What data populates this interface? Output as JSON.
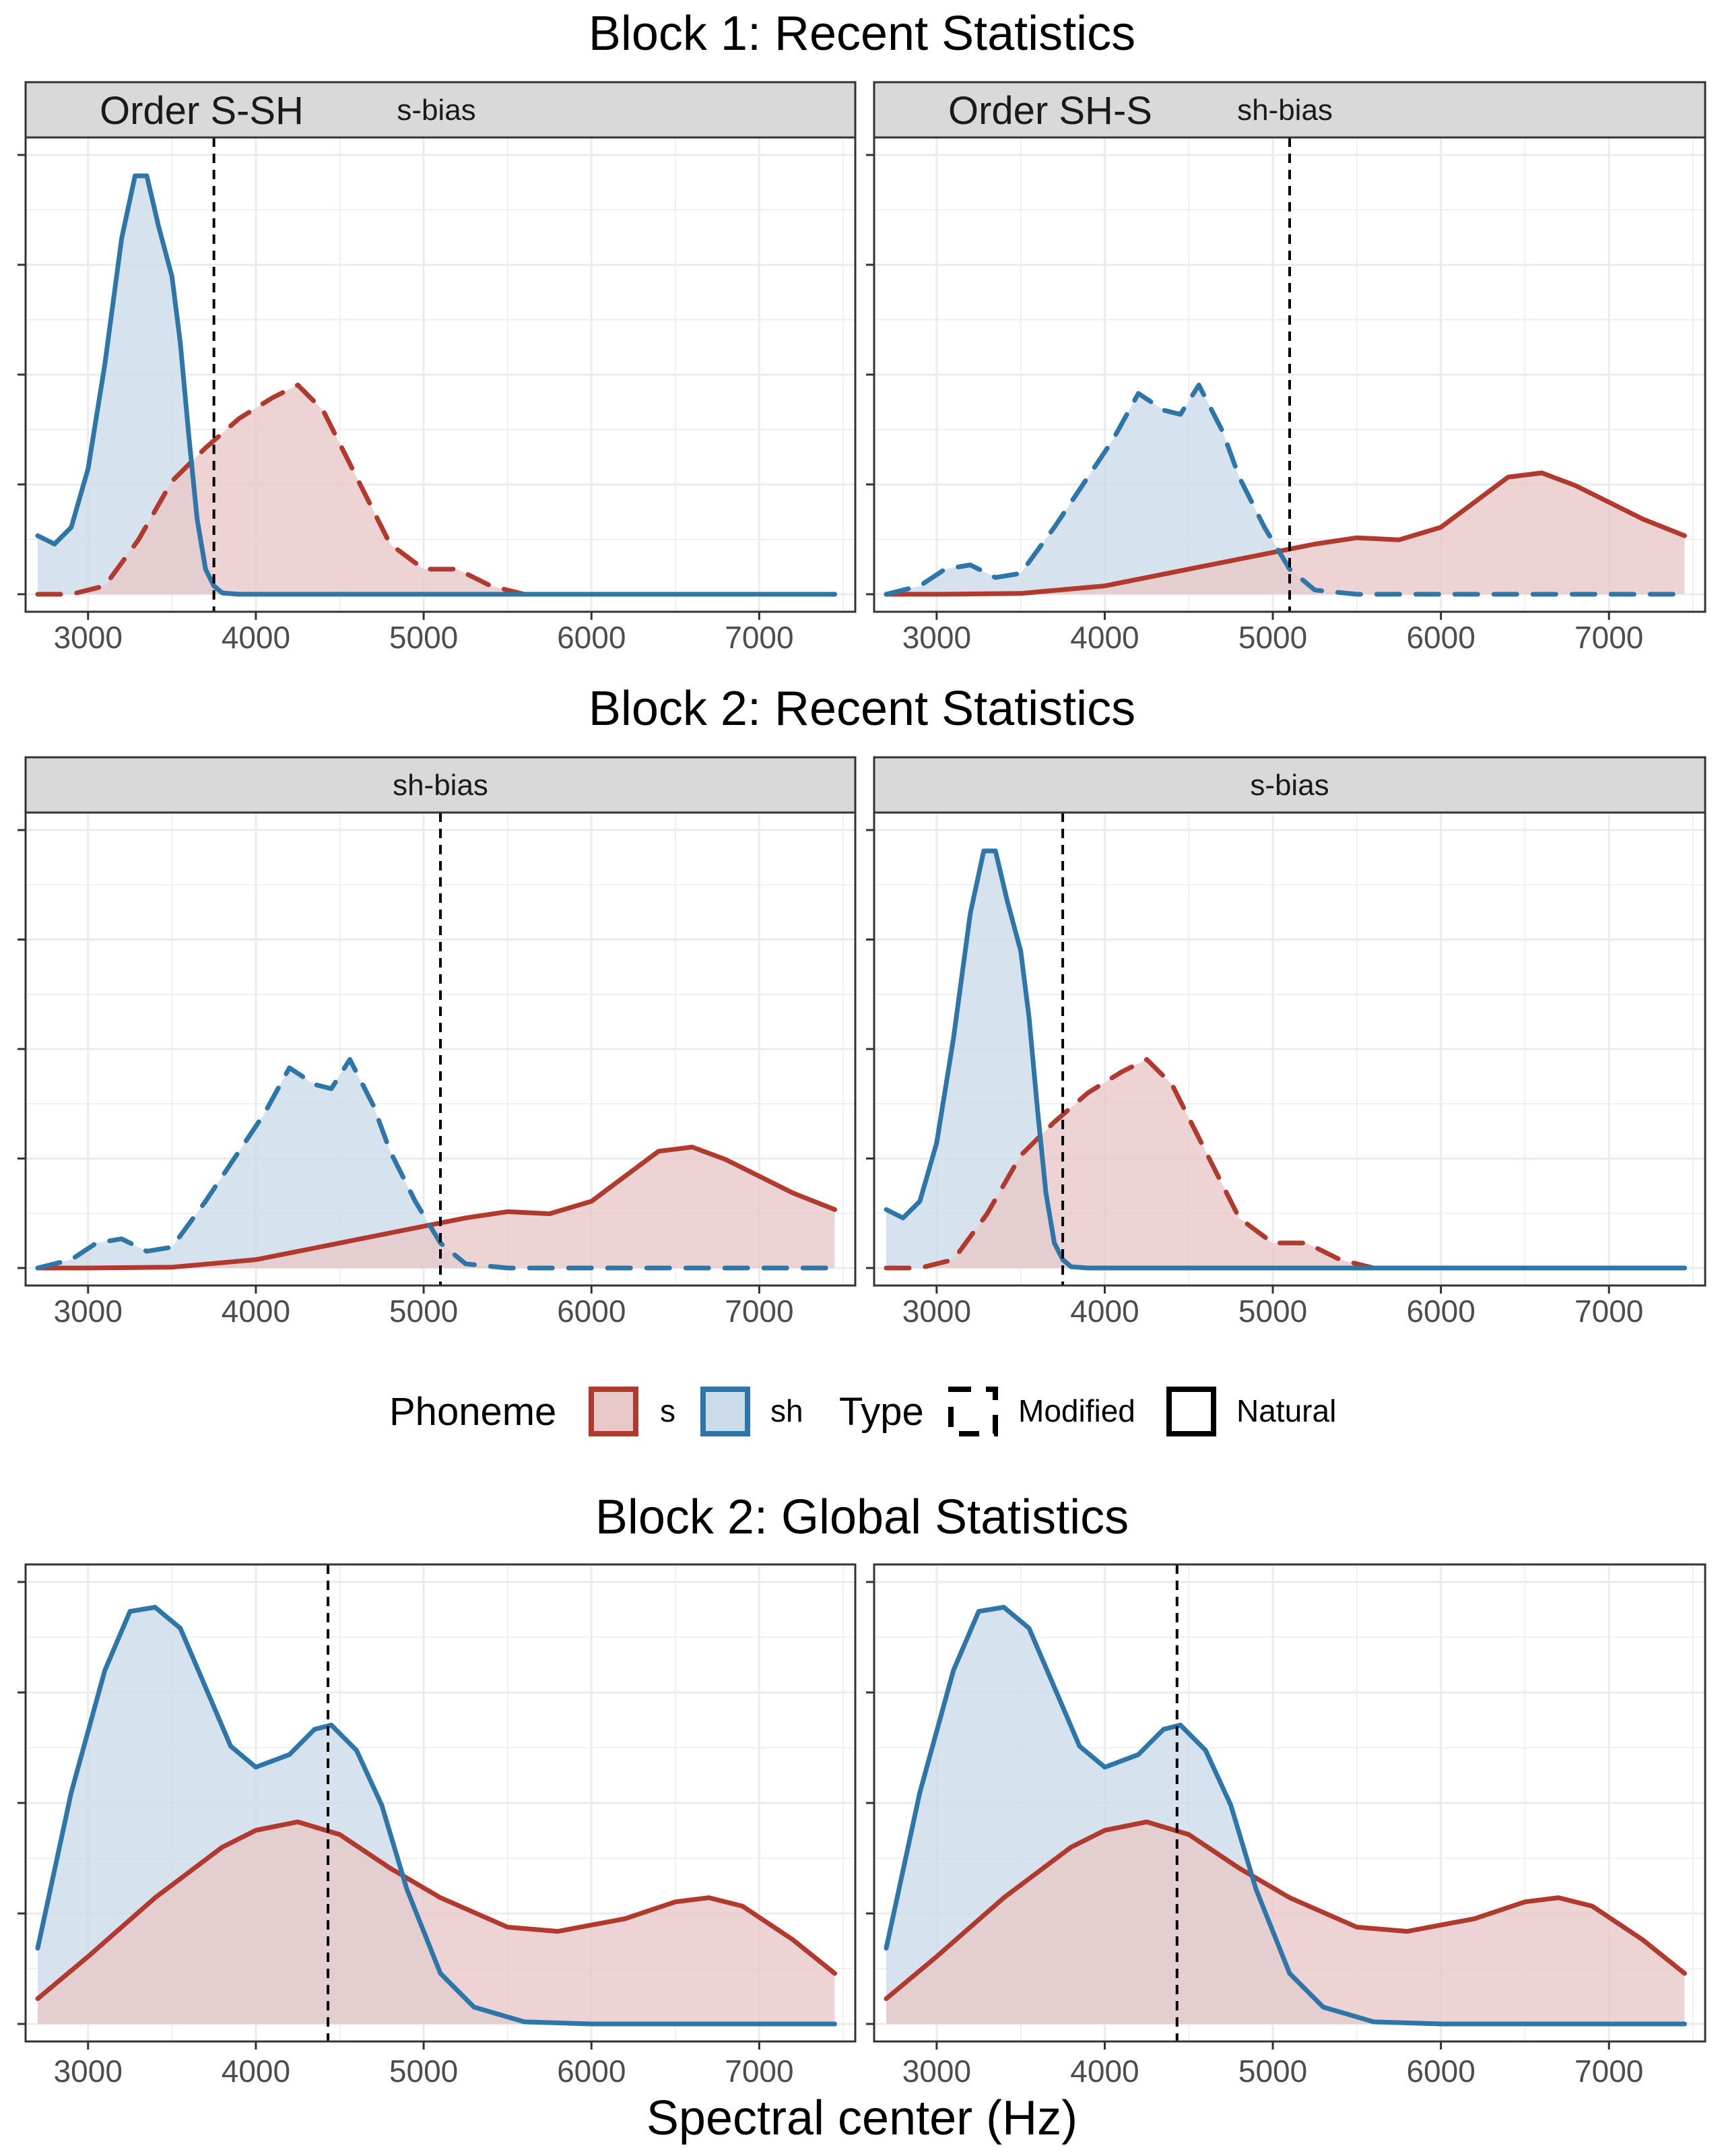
{
  "figure": {
    "block1_title": "Block 1: Recent Statistics",
    "block2_title": "Block 2: Recent Statistics",
    "global_title": "Block 2: Global Statistics",
    "xlabel": "Spectral center (Hz)"
  },
  "legend": {
    "phoneme_title": "Phoneme",
    "phoneme_items": [
      "s",
      "sh"
    ],
    "type_title": "Type",
    "type_items": [
      "Modified",
      "Natural"
    ]
  },
  "colors": {
    "s": "#b03a2e",
    "sh": "#2e75a8",
    "s_fill": "#e8c8c8",
    "sh_fill": "#ccdcea",
    "strip_bg": "#d9d9d9",
    "grid": "#ebebeb"
  },
  "chart_data": [
    {
      "type": "area",
      "panel": "block1-left",
      "strip_label": "s-bias",
      "strip_overlay_label": "Order S-SH",
      "xlim": [
        2700,
        7500
      ],
      "x_ticks": [
        3000,
        4000,
        5000,
        6000,
        7000
      ],
      "ylim": [
        0,
        1.05
      ],
      "boundary": 3750,
      "series": [
        {
          "name": "s",
          "line": "dashed",
          "x": [
            2700,
            2900,
            3100,
            3300,
            3500,
            3700,
            3900,
            4100,
            4250,
            4400,
            4600,
            4800,
            5000,
            5200,
            5400,
            5600,
            5800,
            6000,
            6500,
            7000,
            7450
          ],
          "y": [
            0,
            0,
            0.02,
            0.13,
            0.27,
            0.35,
            0.42,
            0.47,
            0.5,
            0.44,
            0.28,
            0.12,
            0.06,
            0.06,
            0.02,
            0,
            0,
            0,
            0,
            0,
            0
          ]
        },
        {
          "name": "sh",
          "line": "solid",
          "x": [
            2700,
            2800,
            2900,
            3000,
            3100,
            3200,
            3280,
            3350,
            3420,
            3500,
            3550,
            3600,
            3650,
            3700,
            3750,
            3800,
            3900,
            4000,
            5000,
            6000,
            7000,
            7450
          ],
          "y": [
            0.14,
            0.12,
            0.16,
            0.3,
            0.55,
            0.85,
            1.0,
            1.0,
            0.88,
            0.76,
            0.6,
            0.38,
            0.18,
            0.06,
            0.02,
            0.003,
            0,
            0,
            0,
            0,
            0,
            0
          ]
        }
      ]
    },
    {
      "type": "area",
      "panel": "block1-right",
      "strip_label": "sh-bias",
      "strip_overlay_label": "Order SH-S",
      "xlim": [
        2700,
        7500
      ],
      "x_ticks": [
        3000,
        4000,
        5000,
        6000,
        7000
      ],
      "ylim": [
        0,
        1.05
      ],
      "boundary": 5100,
      "series": [
        {
          "name": "s",
          "line": "solid",
          "x": [
            2700,
            3000,
            3500,
            4000,
            4500,
            5000,
            5250,
            5500,
            5750,
            6000,
            6200,
            6400,
            6600,
            6800,
            7000,
            7200,
            7450
          ],
          "y": [
            0,
            0,
            0.002,
            0.02,
            0.06,
            0.1,
            0.12,
            0.135,
            0.13,
            0.16,
            0.22,
            0.28,
            0.29,
            0.26,
            0.22,
            0.18,
            0.14
          ]
        },
        {
          "name": "sh",
          "line": "dashed",
          "x": [
            2700,
            2900,
            3050,
            3200,
            3350,
            3500,
            3700,
            3900,
            4050,
            4200,
            4350,
            4450,
            4560,
            4700,
            4800,
            4950,
            5100,
            5250,
            5500,
            6000,
            7000,
            7450
          ],
          "y": [
            0,
            0.02,
            0.06,
            0.07,
            0.04,
            0.05,
            0.16,
            0.28,
            0.37,
            0.48,
            0.44,
            0.43,
            0.5,
            0.39,
            0.28,
            0.16,
            0.06,
            0.01,
            0,
            0,
            0,
            0
          ]
        }
      ]
    },
    {
      "type": "area",
      "panel": "block2-left",
      "strip_label": "sh-bias",
      "xlim": [
        2700,
        7500
      ],
      "x_ticks": [
        3000,
        4000,
        5000,
        6000,
        7000
      ],
      "ylim": [
        0,
        1.05
      ],
      "boundary": 5100,
      "series": [
        {
          "name": "s",
          "line": "solid",
          "x": [
            2700,
            3000,
            3500,
            4000,
            4500,
            5000,
            5250,
            5500,
            5750,
            6000,
            6200,
            6400,
            6600,
            6800,
            7000,
            7200,
            7450
          ],
          "y": [
            0,
            0,
            0.002,
            0.02,
            0.06,
            0.1,
            0.12,
            0.135,
            0.13,
            0.16,
            0.22,
            0.28,
            0.29,
            0.26,
            0.22,
            0.18,
            0.14
          ]
        },
        {
          "name": "sh",
          "line": "dashed",
          "x": [
            2700,
            2900,
            3050,
            3200,
            3350,
            3500,
            3700,
            3900,
            4050,
            4200,
            4350,
            4450,
            4560,
            4700,
            4800,
            4950,
            5100,
            5250,
            5500,
            6000,
            7000,
            7450
          ],
          "y": [
            0,
            0.02,
            0.06,
            0.07,
            0.04,
            0.05,
            0.16,
            0.28,
            0.37,
            0.48,
            0.44,
            0.43,
            0.5,
            0.39,
            0.28,
            0.16,
            0.06,
            0.01,
            0,
            0,
            0,
            0
          ]
        }
      ]
    },
    {
      "type": "area",
      "panel": "block2-right",
      "strip_label": "s-bias",
      "xlim": [
        2700,
        7500
      ],
      "x_ticks": [
        3000,
        4000,
        5000,
        6000,
        7000
      ],
      "ylim": [
        0,
        1.05
      ],
      "boundary": 3750,
      "series": [
        {
          "name": "s",
          "line": "dashed",
          "x": [
            2700,
            2900,
            3100,
            3300,
            3500,
            3700,
            3900,
            4100,
            4250,
            4400,
            4600,
            4800,
            5000,
            5200,
            5400,
            5600,
            5800,
            6000,
            6500,
            7000,
            7450
          ],
          "y": [
            0,
            0,
            0.02,
            0.13,
            0.27,
            0.35,
            0.42,
            0.47,
            0.5,
            0.44,
            0.28,
            0.12,
            0.06,
            0.06,
            0.02,
            0,
            0,
            0,
            0,
            0,
            0
          ]
        },
        {
          "name": "sh",
          "line": "solid",
          "x": [
            2700,
            2800,
            2900,
            3000,
            3100,
            3200,
            3280,
            3350,
            3420,
            3500,
            3550,
            3600,
            3650,
            3700,
            3750,
            3800,
            3900,
            4000,
            5000,
            6000,
            7000,
            7450
          ],
          "y": [
            0.14,
            0.12,
            0.16,
            0.3,
            0.55,
            0.85,
            1.0,
            1.0,
            0.88,
            0.76,
            0.6,
            0.38,
            0.18,
            0.06,
            0.02,
            0.003,
            0,
            0,
            0,
            0,
            0,
            0
          ]
        }
      ]
    },
    {
      "type": "area",
      "panel": "global-left",
      "xlim": [
        2700,
        7500
      ],
      "x_ticks": [
        3000,
        4000,
        5000,
        6000,
        7000
      ],
      "ylim": [
        0,
        1.05
      ],
      "boundary": 4430,
      "series": [
        {
          "name": "s",
          "line": "solid",
          "x": [
            2700,
            3000,
            3400,
            3800,
            4000,
            4250,
            4500,
            4800,
            5100,
            5500,
            5800,
            6200,
            6500,
            6700,
            6900,
            7200,
            7450
          ],
          "y": [
            0.06,
            0.16,
            0.3,
            0.42,
            0.46,
            0.48,
            0.45,
            0.37,
            0.3,
            0.23,
            0.22,
            0.25,
            0.29,
            0.3,
            0.28,
            0.2,
            0.12
          ]
        },
        {
          "name": "sh",
          "line": "solid",
          "x": [
            2700,
            2900,
            3100,
            3250,
            3400,
            3550,
            3700,
            3850,
            4000,
            4200,
            4350,
            4450,
            4600,
            4750,
            4900,
            5100,
            5300,
            5600,
            6000,
            7000,
            7450
          ],
          "y": [
            0.18,
            0.55,
            0.84,
            0.98,
            0.99,
            0.94,
            0.8,
            0.66,
            0.61,
            0.64,
            0.7,
            0.71,
            0.65,
            0.52,
            0.32,
            0.12,
            0.04,
            0.005,
            0,
            0,
            0
          ]
        }
      ]
    },
    {
      "type": "area",
      "panel": "global-right",
      "xlim": [
        2700,
        7500
      ],
      "x_ticks": [
        3000,
        4000,
        5000,
        6000,
        7000
      ],
      "ylim": [
        0,
        1.05
      ],
      "boundary": 4430,
      "series": [
        {
          "name": "s",
          "line": "solid",
          "x": [
            2700,
            3000,
            3400,
            3800,
            4000,
            4250,
            4500,
            4800,
            5100,
            5500,
            5800,
            6200,
            6500,
            6700,
            6900,
            7200,
            7450
          ],
          "y": [
            0.06,
            0.16,
            0.3,
            0.42,
            0.46,
            0.48,
            0.45,
            0.37,
            0.3,
            0.23,
            0.22,
            0.25,
            0.29,
            0.3,
            0.28,
            0.2,
            0.12
          ]
        },
        {
          "name": "sh",
          "line": "solid",
          "x": [
            2700,
            2900,
            3100,
            3250,
            3400,
            3550,
            3700,
            3850,
            4000,
            4200,
            4350,
            4450,
            4600,
            4750,
            4900,
            5100,
            5300,
            5600,
            6000,
            7000,
            7450
          ],
          "y": [
            0.18,
            0.55,
            0.84,
            0.98,
            0.99,
            0.94,
            0.8,
            0.66,
            0.61,
            0.64,
            0.7,
            0.71,
            0.65,
            0.52,
            0.32,
            0.12,
            0.04,
            0.005,
            0,
            0,
            0
          ]
        }
      ]
    }
  ]
}
